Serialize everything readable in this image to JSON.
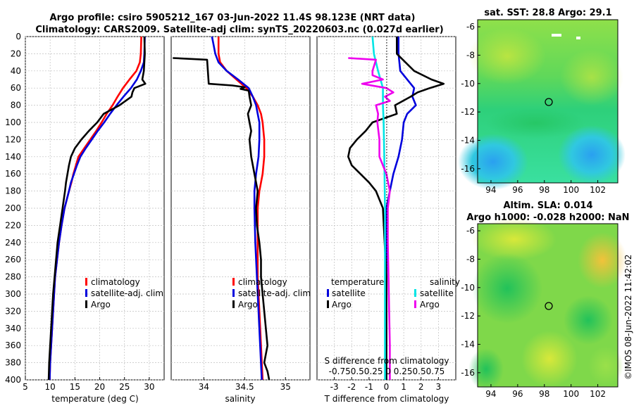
{
  "title_line1": "Argo profile: csiro 5905212_167 03-Jun-2022 11.4S 98.123E (NRT data)",
  "title_line2": "Climatology: CARS2009. Satellite-adj clim: synTS_20220603.nc (0.027d earlier)",
  "depth_ticks": [
    "0",
    "20",
    "40",
    "60",
    "80",
    "100",
    "120",
    "140",
    "160",
    "180",
    "200",
    "220",
    "240",
    "260",
    "280",
    "300",
    "320",
    "340",
    "360",
    "380",
    "400"
  ],
  "colors": {
    "climatology": "#ff0000",
    "satellite": "#0000dd",
    "argo": "#000000",
    "sal_sat": "#00e5e5",
    "sal_argo": "#ee00ee"
  },
  "chart_data": [
    {
      "type": "line",
      "title": "",
      "xlabel": "temperature (deg C)",
      "ylabel": "depth",
      "xlim": [
        5,
        33
      ],
      "ylim": [
        0,
        400
      ],
      "xticks": [
        "5",
        "10",
        "15",
        "20",
        "25",
        "30"
      ],
      "legend": {
        "placement": "middle-right",
        "labels": [
          "climatology",
          "satellite-adj. clim",
          "Argo"
        ]
      },
      "series": [
        {
          "name": "climatology",
          "depth": [
            0,
            20,
            30,
            40,
            50,
            60,
            70,
            80,
            90,
            100,
            110,
            120,
            130,
            140,
            150,
            160,
            170,
            180,
            200,
            220,
            240,
            260,
            280,
            300,
            320,
            340,
            360,
            380,
            400
          ],
          "values": [
            28.4,
            28.3,
            28.1,
            27.4,
            26,
            24.7,
            23.6,
            22.6,
            21.4,
            20.4,
            19.3,
            18.1,
            16.9,
            15.7,
            15.2,
            14.7,
            14.3,
            13.8,
            12.9,
            12.3,
            11.8,
            11.4,
            11,
            10.8,
            10.6,
            10.4,
            10.2,
            10,
            9.9
          ]
        },
        {
          "name": "satellite-adj. clim",
          "depth": [
            0,
            20,
            30,
            40,
            50,
            60,
            70,
            80,
            90,
            100,
            110,
            120,
            130,
            140,
            150,
            160,
            170,
            180,
            200,
            220,
            240,
            260,
            280,
            300,
            320,
            340,
            360,
            380,
            400
          ],
          "values": [
            29.1,
            29,
            28.9,
            28.3,
            27.5,
            26.3,
            24.8,
            23.4,
            22.1,
            20.9,
            19.6,
            18.4,
            17.2,
            16.1,
            15.4,
            14.8,
            14.2,
            13.8,
            12.9,
            12.3,
            11.8,
            11.4,
            11,
            10.8,
            10.6,
            10.4,
            10.2,
            10,
            9.9
          ]
        },
        {
          "name": "Argo",
          "depth": [
            0,
            20,
            40,
            50,
            55,
            60,
            65,
            70,
            80,
            90,
            100,
            110,
            120,
            130,
            140,
            150,
            160,
            170,
            180,
            200,
            220,
            240,
            260,
            280,
            300,
            320,
            340,
            360,
            380,
            400
          ],
          "values": [
            29,
            29.1,
            28.9,
            28.6,
            29.2,
            27,
            26.6,
            26.4,
            24,
            20.8,
            19.5,
            17.8,
            16.3,
            15,
            14.2,
            13.8,
            13.5,
            13.2,
            13,
            12.5,
            12,
            11.5,
            11.2,
            10.9,
            10.6,
            10.4,
            10.2,
            10,
            9.8,
            9.7
          ]
        }
      ]
    },
    {
      "type": "line",
      "title": "",
      "xlabel": "salinity",
      "ylabel": "depth",
      "xlim": [
        33.6,
        35.3
      ],
      "ylim": [
        0,
        400
      ],
      "xticks": [
        "34",
        "34.5",
        "35"
      ],
      "legend": {
        "placement": "middle-right",
        "labels": [
          "climatology",
          "satellite-adj. clim",
          "Argo"
        ]
      },
      "series": [
        {
          "name": "climatology",
          "depth": [
            0,
            20,
            30,
            40,
            50,
            60,
            70,
            80,
            90,
            100,
            120,
            140,
            160,
            180,
            200,
            240,
            280,
            320,
            360,
            400
          ],
          "values": [
            34.18,
            34.18,
            34.2,
            34.28,
            34.4,
            34.52,
            34.6,
            34.66,
            34.7,
            34.72,
            34.74,
            34.74,
            34.72,
            34.68,
            34.66,
            34.66,
            34.66,
            34.68,
            34.7,
            34.72
          ]
        },
        {
          "name": "satellite-adj. clim",
          "depth": [
            0,
            10,
            20,
            30,
            40,
            50,
            60,
            70,
            80,
            90,
            100,
            120,
            140,
            160,
            180,
            200,
            240,
            280,
            320,
            360,
            400
          ],
          "values": [
            34.1,
            34.12,
            34.14,
            34.18,
            34.28,
            34.42,
            34.55,
            34.6,
            34.64,
            34.66,
            34.68,
            34.68,
            34.67,
            34.64,
            34.62,
            34.62,
            34.63,
            34.65,
            34.67,
            34.69,
            34.71
          ]
        },
        {
          "name": "Argo",
          "depth": [
            25,
            27,
            55,
            57,
            59,
            61,
            63,
            70,
            80,
            90,
            100,
            110,
            120,
            140,
            160,
            180,
            200,
            220,
            240,
            260,
            280,
            300,
            320,
            340,
            360,
            380,
            390,
            400
          ],
          "values": [
            33.62,
            34.04,
            34.06,
            34.35,
            34.5,
            34.45,
            34.55,
            34.56,
            34.58,
            34.54,
            34.56,
            34.58,
            34.56,
            34.58,
            34.62,
            34.66,
            34.64,
            34.65,
            34.68,
            34.7,
            34.7,
            34.72,
            34.74,
            34.76,
            34.78,
            34.74,
            34.78,
            34.8
          ]
        }
      ]
    },
    {
      "type": "line",
      "title": "",
      "xlabel": "T difference from climatology",
      "xlabel_top": "S difference from climatology",
      "ylabel": "depth",
      "xlim": [
        -4,
        4
      ],
      "ylim": [
        0,
        400
      ],
      "xticks": [
        "-3",
        "-2",
        "-1",
        "0",
        "1",
        "2",
        "3"
      ],
      "xticks_top": [
        "-0.75",
        "0.5",
        "0.25",
        "0",
        "0.25",
        "0.5",
        "0.75"
      ],
      "xticks_top_text": "-0.750.50.25 0 0.250.50.75",
      "legend": {
        "placement": "middle",
        "temperature_title": "temperature",
        "salinity_title": "salinity",
        "labels": [
          "satellite",
          "Argo",
          "satellite",
          "Argo"
        ]
      },
      "series": [
        {
          "name": "temperature satellite",
          "depth": [
            0,
            20,
            40,
            60,
            70,
            80,
            90,
            100,
            120,
            140,
            160,
            180,
            200,
            240,
            280,
            320,
            360,
            400
          ],
          "values": [
            0.7,
            0.7,
            0.8,
            1.6,
            1.5,
            1.7,
            1.2,
            1,
            0.9,
            0.7,
            0.4,
            0.2,
            0,
            0,
            0,
            0,
            0,
            0
          ]
        },
        {
          "name": "temperature Argo",
          "depth": [
            0,
            20,
            40,
            50,
            55,
            60,
            65,
            70,
            80,
            90,
            100,
            110,
            120,
            130,
            140,
            150,
            160,
            170,
            180,
            200,
            240,
            280,
            320,
            360,
            400
          ],
          "values": [
            0.6,
            0.6,
            1.6,
            2.6,
            3.3,
            2.5,
            1.8,
            1.4,
            0.5,
            0.6,
            -0.8,
            -1.2,
            -1.7,
            -2.1,
            -2.2,
            -2,
            -1.5,
            -1,
            -0.6,
            -0.2,
            -0.1,
            0,
            0,
            0,
            0
          ]
        },
        {
          "name": "salinity satellite",
          "depth": [
            0,
            20,
            40,
            60,
            80,
            100,
            140,
            200,
            260,
            300,
            340,
            400
          ],
          "values": [
            -0.2,
            -0.18,
            -0.12,
            -0.05,
            -0.05,
            -0.04,
            -0.03,
            -0.02,
            -0.02,
            -0.02,
            -0.02,
            -0.02
          ]
        },
        {
          "name": "salinity Argo",
          "depth": [
            25,
            27,
            40,
            45,
            50,
            55,
            60,
            65,
            70,
            75,
            80,
            90,
            100,
            120,
            140,
            160,
            180,
            200,
            240,
            280,
            320,
            360,
            400
          ],
          "values": [
            -0.55,
            -0.15,
            -0.2,
            -0.2,
            -0.05,
            -0.35,
            0,
            0.1,
            -0.02,
            0.05,
            -0.15,
            -0.12,
            -0.13,
            -0.1,
            -0.1,
            0,
            0.05,
            0.02,
            0.02,
            0.03,
            0.04,
            0.05,
            0.05
          ]
        }
      ]
    },
    {
      "type": "heatmap",
      "title": "sat. SST: 28.8 Argo: 29.1",
      "xlim": [
        93,
        103.5
      ],
      "ylim": [
        -17,
        -5.5
      ],
      "xticks": [
        "94",
        "96",
        "98",
        "100",
        "102"
      ],
      "yticks": [
        "-6",
        "-8",
        "-10",
        "-12",
        "-14",
        "-16"
      ],
      "marker": {
        "lon": 98.123,
        "lat": -11.4
      }
    },
    {
      "type": "heatmap",
      "title": "Altim. SLA: 0.014",
      "subtitle": "Argo h1000: -0.028 h2000: NaN",
      "xlim": [
        93,
        103.5
      ],
      "ylim": [
        -17,
        -5.5
      ],
      "xticks": [
        "94",
        "96",
        "98",
        "100",
        "102"
      ],
      "yticks": [
        "-6",
        "-8",
        "-10",
        "-12",
        "-14",
        "-16"
      ],
      "marker": {
        "lon": 98.123,
        "lat": -11.4
      }
    }
  ],
  "watermark": "©IMOS 08-Jun-2022 11:42:02"
}
